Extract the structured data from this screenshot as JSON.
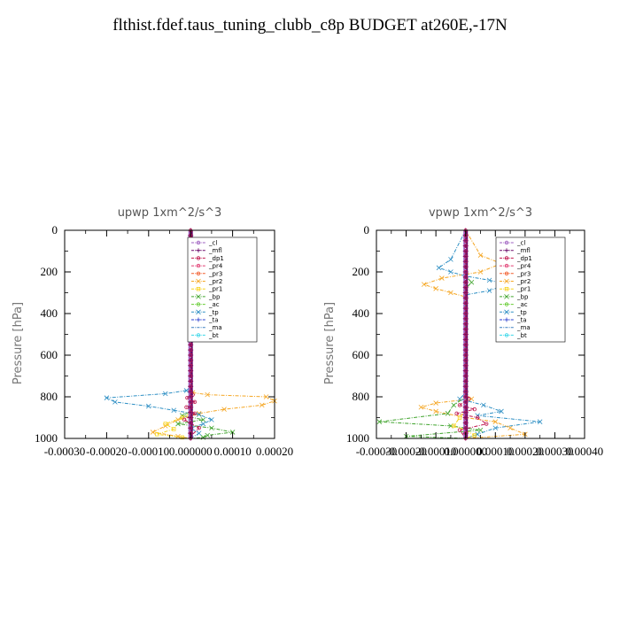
{
  "page": {
    "title": "flthist.fdef.taus_tuning_clubb_c8p  BUDGET at260E,-17N"
  },
  "legend_entries": [
    {
      "name": "_cl",
      "color": "#9e5fc0",
      "marker": "circle"
    },
    {
      "name": "_mfl",
      "color": "#6a0a6a",
      "marker": "plus"
    },
    {
      "name": "_dp1",
      "color": "#c0154d",
      "marker": "circle"
    },
    {
      "name": "_pr4",
      "color": "#e03a70",
      "marker": "circle"
    },
    {
      "name": "_pr3",
      "color": "#f25b2a",
      "marker": "circle"
    },
    {
      "name": "_pr2",
      "color": "#f5a623",
      "marker": "x"
    },
    {
      "name": "_pr1",
      "color": "#f7d21a",
      "marker": "square"
    },
    {
      "name": "_bp",
      "color": "#3ea32b",
      "marker": "x"
    },
    {
      "name": "_ac",
      "color": "#66cc33",
      "marker": "circle"
    },
    {
      "name": "_tp",
      "color": "#2e8fc4",
      "marker": "x"
    },
    {
      "name": "_ta",
      "color": "#2a3fd0",
      "marker": "plus"
    },
    {
      "name": "_ma",
      "color": "#3a7fc0",
      "marker": "none"
    },
    {
      "name": "_bt",
      "color": "#38d6e8",
      "marker": "circle"
    }
  ],
  "chart_data": [
    {
      "type": "line",
      "title": "upwp   1xm^2/s^3",
      "ylabel": "Pressure [hPa]",
      "xlim": [
        -0.0003,
        0.0002
      ],
      "ylim": [
        1000,
        0
      ],
      "xticks": [
        -0.0003,
        -0.0002,
        -0.0001,
        0.0,
        0.0001,
        0.0002
      ],
      "xtick_labels": [
        "-0.00030",
        "-0.00020",
        "-0.00010",
        "0.000000",
        "0.00010",
        "0.00020"
      ],
      "yticks": [
        0,
        200,
        400,
        600,
        800,
        1000
      ],
      "ytick_labels": [
        "0",
        "200",
        "400",
        "600",
        "800",
        "1000"
      ],
      "legend": "top-right",
      "series": [
        {
          "name": "_pr2",
          "x": [
            0,
            0,
            0,
            5e-06,
            4e-05,
            0.00018,
            0.0002,
            0.00017,
            8e-05,
            2e-05,
            -3e-05,
            -6e-05,
            -9e-05,
            -3e-05,
            0
          ],
          "y": [
            0,
            700,
            760,
            780,
            790,
            800,
            820,
            840,
            860,
            880,
            910,
            940,
            970,
            990,
            1000
          ]
        },
        {
          "name": "_tp",
          "x": [
            0,
            0,
            0,
            -1e-05,
            -6e-05,
            -0.0002,
            -0.00018,
            -0.0001,
            -4e-05,
            2e-05,
            5e-05,
            3e-05,
            0,
            2e-05,
            0
          ],
          "y": [
            0,
            700,
            760,
            770,
            785,
            805,
            825,
            845,
            865,
            885,
            910,
            930,
            950,
            975,
            1000
          ]
        },
        {
          "name": "_bp",
          "x": [
            0,
            0,
            0,
            -2e-05,
            3e-05,
            -3e-05,
            5e-05,
            0.0001,
            4e-05,
            3e-05,
            0
          ],
          "y": [
            0,
            850,
            870,
            890,
            910,
            930,
            950,
            970,
            985,
            995,
            1000
          ]
        },
        {
          "name": "_pr1",
          "x": [
            0,
            0,
            0,
            -2e-05,
            -6e-05,
            -4e-05,
            -8e-05,
            -2e-05,
            0
          ],
          "y": [
            0,
            860,
            880,
            900,
            930,
            955,
            980,
            995,
            1000
          ]
        },
        {
          "name": "_dp1",
          "x": [
            0,
            0,
            5e-06,
            -8e-06,
            1e-05,
            -1e-05,
            1e-05,
            -1.5e-05,
            2e-05,
            0,
            0
          ],
          "y": [
            0,
            760,
            790,
            805,
            825,
            850,
            880,
            910,
            950,
            990,
            1000
          ]
        },
        {
          "name": "_mfl",
          "x": [
            0,
            0,
            0
          ],
          "y": [
            0,
            900,
            1000
          ]
        }
      ]
    },
    {
      "type": "line",
      "title": "vpwp   1xm^2/s^3",
      "ylabel": "Pressure [hPa]",
      "xlim": [
        -0.0003,
        0.0004
      ],
      "ylim": [
        1000,
        0
      ],
      "xticks": [
        -0.0003,
        -0.0002,
        -0.0001,
        0.0,
        0.0001,
        0.0002,
        0.0003,
        0.0004
      ],
      "xtick_labels": [
        "-0.00030",
        "-0.00020",
        "-0.00010",
        "0.000000",
        "0.00010",
        "0.00020",
        "0.00030",
        "0.00040"
      ],
      "yticks": [
        0,
        200,
        400,
        600,
        800,
        1000
      ],
      "ytick_labels": [
        "0",
        "200",
        "400",
        "600",
        "800",
        "1000"
      ],
      "legend": "top-right",
      "series": [
        {
          "name": "_pr2",
          "x": [
            0,
            5e-05,
            0.00012,
            5e-05,
            -8e-05,
            -0.00014,
            -0.0001,
            -5e-05,
            0,
            0,
            2e-05,
            -0.0001,
            -0.00015,
            -0.0001,
            0,
            0.0001,
            0.00015,
            0.0002,
            0
          ],
          "y": [
            0,
            120,
            160,
            200,
            230,
            260,
            280,
            300,
            320,
            790,
            810,
            830,
            850,
            870,
            900,
            920,
            950,
            980,
            1000
          ]
        },
        {
          "name": "_tp",
          "x": [
            0,
            -5e-05,
            -9e-05,
            -5e-05,
            0,
            8e-05,
            0.00014,
            8e-05,
            0,
            0,
            -2e-05,
            6e-05,
            0.00012,
            4e-05,
            0.00025,
            0.0001,
            4e-05,
            0
          ],
          "y": [
            0,
            140,
            180,
            200,
            220,
            240,
            260,
            290,
            310,
            780,
            810,
            840,
            870,
            890,
            920,
            950,
            980,
            1000
          ]
        },
        {
          "name": "_bp",
          "x": [
            0,
            0,
            2e-05,
            0,
            0,
            -4e-05,
            -6e-05,
            -0.00029,
            -5e-05,
            5e-05,
            -0.0002,
            0
          ],
          "y": [
            0,
            220,
            250,
            280,
            800,
            840,
            880,
            920,
            940,
            960,
            990,
            1000
          ]
        },
        {
          "name": "_dp1",
          "x": [
            0,
            0,
            1e-05,
            -2e-05,
            3e-05,
            -3e-05,
            4e-05,
            7e-05,
            -2e-05,
            0
          ],
          "y": [
            0,
            780,
            810,
            840,
            860,
            880,
            900,
            930,
            960,
            1000
          ]
        },
        {
          "name": "_pr1",
          "x": [
            0,
            0,
            -2e-05,
            -4e-05,
            0,
            3e-05,
            0
          ],
          "y": [
            0,
            860,
            900,
            940,
            960,
            985,
            1000
          ]
        },
        {
          "name": "_mfl",
          "x": [
            0,
            0,
            0
          ],
          "y": [
            0,
            900,
            1000
          ]
        }
      ]
    }
  ]
}
